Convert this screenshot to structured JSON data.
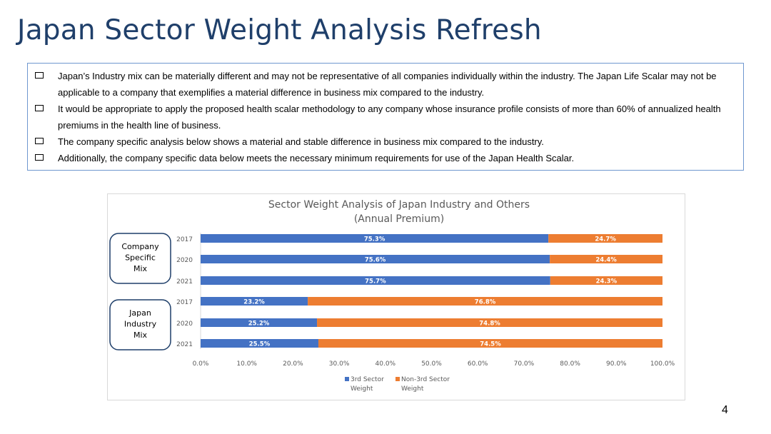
{
  "slide": {
    "title": "Japan Sector Weight Analysis Refresh",
    "page_number": "4"
  },
  "bullets": [
    "Japan’s Industry mix can be materially different and may not be representative of all companies individually within the industry. The Japan Life Scalar may not be applicable to a company that exemplifies a material difference in business mix compared to the industry.",
    "It would be appropriate to apply the proposed health scalar methodology to any company whose insurance profile consists of more than 60% of annualized health premiums in the health line of business.",
    "The company specific analysis below shows a material and stable difference in business mix compared to the industry.",
    "Additionally, the company specific data below meets the necessary minimum requirements for use of the Japan Health Scalar."
  ],
  "colors": {
    "third_sector": "#4472c4",
    "non_third_sector": "#ed7d31",
    "title": "#1f3f6a",
    "box_border": "#6f97cf"
  },
  "chart_data": {
    "type": "bar",
    "orientation": "horizontal",
    "stacked": true,
    "title": "Sector Weight Analysis of Japan Industry and Others",
    "subtitle": "(Annual Premium)",
    "groups": [
      {
        "label": "Company Specific Mix",
        "label_lines": [
          "Company",
          "Specific",
          "Mix"
        ],
        "categories": [
          "2017",
          "2020",
          "2021"
        ]
      },
      {
        "label": "Japan Industry Mix",
        "label_lines": [
          "Japan",
          "Industry",
          "Mix"
        ],
        "categories": [
          "2017",
          "2020",
          "2021"
        ]
      }
    ],
    "categories": [
      "2017",
      "2020",
      "2021",
      "2017",
      "2020",
      "2021"
    ],
    "series": [
      {
        "name": "3rd Sector Weight",
        "name_lines": [
          "3rd Sector",
          "Weight"
        ],
        "values": [
          75.3,
          75.6,
          75.7,
          23.2,
          25.2,
          25.5
        ],
        "labels": [
          "75.3%",
          "75.6%",
          "75.7%",
          "23.2%",
          "25.2%",
          "25.5%"
        ]
      },
      {
        "name": "Non-3rd Sector Weight",
        "name_lines": [
          "Non-3rd Sector",
          "Weight"
        ],
        "values": [
          24.7,
          24.4,
          24.3,
          76.8,
          74.8,
          74.5
        ],
        "labels": [
          "24.7%",
          "24.4%",
          "24.3%",
          "76.8%",
          "74.8%",
          "74.5%"
        ]
      }
    ],
    "xlim": [
      0,
      100
    ],
    "xticks": [
      "0.0%",
      "10.0%",
      "20.0%",
      "30.0%",
      "40.0%",
      "50.0%",
      "60.0%",
      "70.0%",
      "80.0%",
      "90.0%",
      "100.0%"
    ],
    "grid": false,
    "legend": "bottom"
  }
}
